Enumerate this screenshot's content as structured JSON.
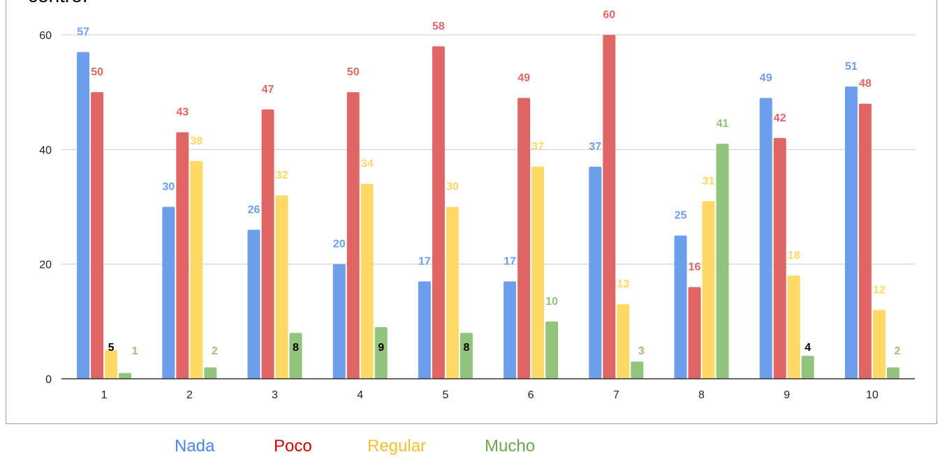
{
  "chart_data": {
    "type": "bar",
    "title": "centro.",
    "categories": [
      "1",
      "2",
      "3",
      "4",
      "5",
      "6",
      "7",
      "8",
      "9",
      "10"
    ],
    "series": [
      {
        "name": "Nada",
        "color": "#6d9eeb",
        "values": [
          57,
          30,
          26,
          20,
          17,
          17,
          37,
          25,
          49,
          51
        ]
      },
      {
        "name": "Poco",
        "color": "#e06666",
        "values": [
          50,
          43,
          47,
          50,
          58,
          49,
          60,
          16,
          42,
          48
        ]
      },
      {
        "name": "Regular",
        "color": "#ffd966",
        "values": [
          5,
          38,
          32,
          34,
          30,
          37,
          13,
          31,
          18,
          12
        ]
      },
      {
        "name": "Mucho",
        "color": "#93c47d",
        "values": [
          1,
          2,
          8,
          9,
          8,
          10,
          3,
          41,
          4,
          2
        ]
      }
    ],
    "legend_text_colors": [
      "#4a86e8",
      "#cc0000",
      "#f1c232",
      "#6aa84f"
    ],
    "y_ticks": [
      "0",
      "20",
      "40",
      "60"
    ],
    "ylim": [
      0,
      60
    ],
    "xlabel": "",
    "ylabel": "",
    "grid": true,
    "legend_position": "bottom"
  }
}
